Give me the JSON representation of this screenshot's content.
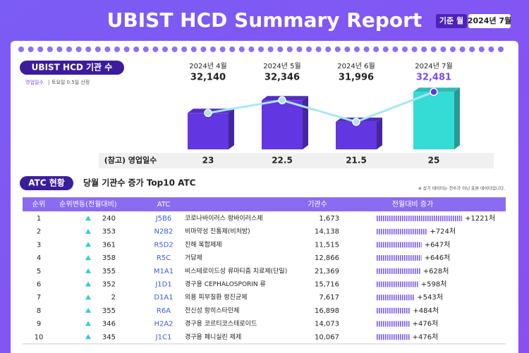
{
  "header": {
    "title": "UBIST HCD Summary Report",
    "base_month_label": "기준 월",
    "base_month": "2024년 7월"
  },
  "chart_data": {
    "type": "bar",
    "title": "UBIST HCD 기관 수",
    "note_key": "영업일수",
    "note": "토요일 0.5일 산정",
    "categories": [
      "2024년 4월",
      "2024년 5월",
      "2024년 6월",
      "2024년 7월"
    ],
    "values": [
      32140,
      32346,
      31996,
      32481
    ],
    "value_labels": [
      "32,140",
      "32,346",
      "31,996",
      "32,481"
    ],
    "colors": [
      "#6236e0",
      "#6236e0",
      "#6236e0",
      "#35dcd6"
    ],
    "line_color": "#a9e6f5",
    "ylim": [
      31550,
      32600
    ],
    "business_days_label": "(참고) 영업일수",
    "business_days": [
      23,
      22.5,
      21.5,
      25
    ]
  },
  "table": {
    "section": "ATC 현황",
    "title": "당월 기관수 증가 Top10 ATC",
    "note": "※ 상기 데이터는 전수가 아닌 표본 데이터입니다.",
    "columns": [
      "순위",
      "순위변동(전월대비)",
      "ATC",
      "기관수",
      "전월대비 증가"
    ],
    "rows": [
      {
        "rank": 1,
        "rank_change": 240,
        "code": "J5B6",
        "name": "코로나바이러스 항바이러스제",
        "count": "1,673",
        "increase": 1221,
        "increase_label": "+1221처"
      },
      {
        "rank": 2,
        "rank_change": 353,
        "code": "N2B2",
        "name": "비마약성 진통제(비처방)",
        "count": "14,138",
        "increase": 724,
        "increase_label": "+724처"
      },
      {
        "rank": 3,
        "rank_change": 361,
        "code": "R5D2",
        "name": "진해 복합제제",
        "count": "11,515",
        "increase": 647,
        "increase_label": "+647처"
      },
      {
        "rank": 4,
        "rank_change": 358,
        "code": "R5C",
        "name": "거담제",
        "count": "12,866",
        "increase": 646,
        "increase_label": "+646처"
      },
      {
        "rank": 5,
        "rank_change": 355,
        "code": "M1A1",
        "name": "비스테로이드성 류마티즘 치료제(단일)",
        "count": "21,369",
        "increase": 628,
        "increase_label": "+628처"
      },
      {
        "rank": 6,
        "rank_change": 352,
        "code": "J1D1",
        "name": "경구용 CEPHALOSPORIN 류",
        "count": "15,716",
        "increase": 598,
        "increase_label": "+598처"
      },
      {
        "rank": 7,
        "rank_change": 2,
        "code": "D1A1",
        "name": "외용 피부질환 항진균제",
        "count": "7,617",
        "increase": 543,
        "increase_label": "+543처"
      },
      {
        "rank": 8,
        "rank_change": 355,
        "code": "R6A",
        "name": "전신성 항히스타민제",
        "count": "16,898",
        "increase": 484,
        "increase_label": "+484처"
      },
      {
        "rank": 9,
        "rank_change": 346,
        "code": "H2A2",
        "name": "경구용 코르티코스테로이드",
        "count": "14,073",
        "increase": 476,
        "increase_label": "+476처"
      },
      {
        "rank": 10,
        "rank_change": 345,
        "code": "J1C1",
        "name": "경구용 페니실린 제제",
        "count": "10,067",
        "increase": 476,
        "increase_label": "+476처"
      }
    ]
  }
}
